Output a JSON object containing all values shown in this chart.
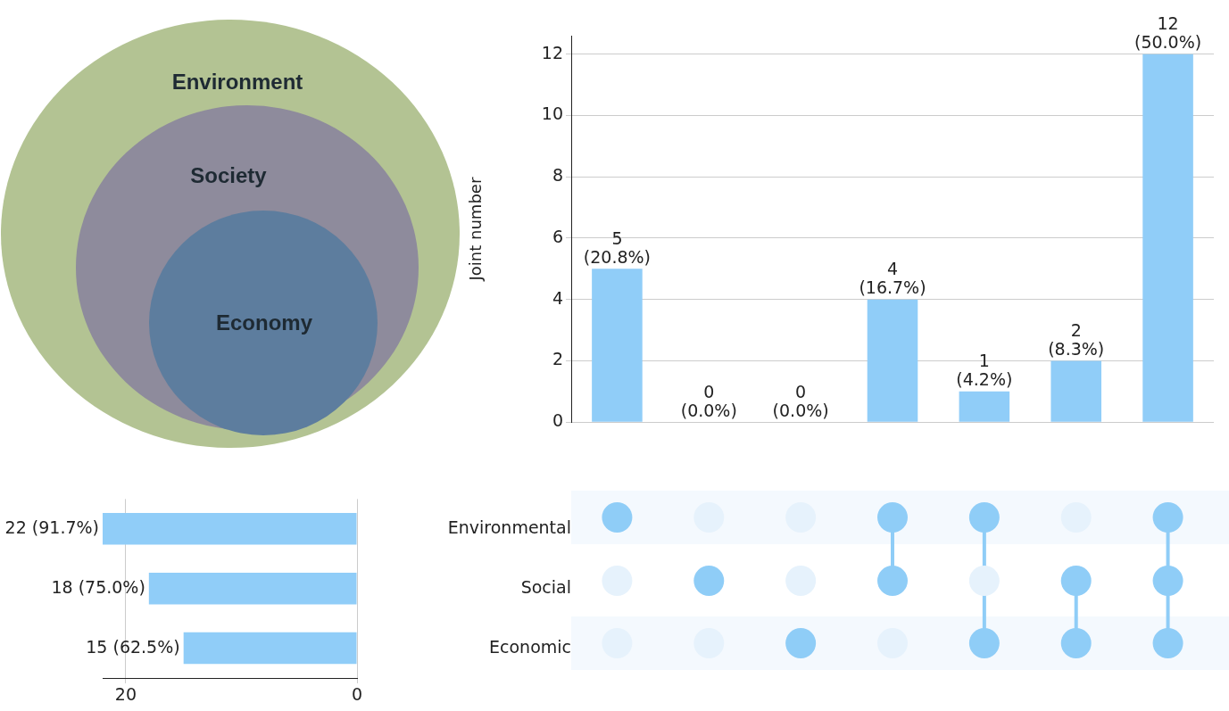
{
  "chart_data": [
    {
      "type": "other",
      "annotations": [
        "Environment",
        "Society",
        "Economy"
      ]
    },
    {
      "type": "bar",
      "categories": [
        null,
        null,
        null,
        null,
        null,
        null,
        null
      ],
      "values": [
        5,
        0,
        0,
        4,
        1,
        2,
        12
      ],
      "color": "#90cdf8",
      "ylabel": "Joint number",
      "ylim": [
        0,
        12.6
      ],
      "yticks": [
        0,
        2,
        4,
        6,
        8,
        10,
        12
      ],
      "grid": "y",
      "value_labels": [
        "5 (20.8%)",
        "0 (0.0%)",
        "0 (0.0%)",
        "4 (16.7%)",
        "1 (4.2%)",
        "2 (8.3%)",
        "12 (50.0%)"
      ]
    },
    {
      "type": "bar",
      "orientation": "horizontal",
      "categories": [
        "Environmental",
        "Social",
        "Economic"
      ],
      "values": [
        22,
        18,
        15
      ],
      "color": "#90cdf8",
      "xlim": [
        22,
        0
      ],
      "xticks": [
        20,
        0
      ],
      "grid": "x",
      "value_labels": [
        "22 (91.7%)",
        "18 (75.0%)",
        "15 (62.5%)"
      ]
    }
  ]
}
